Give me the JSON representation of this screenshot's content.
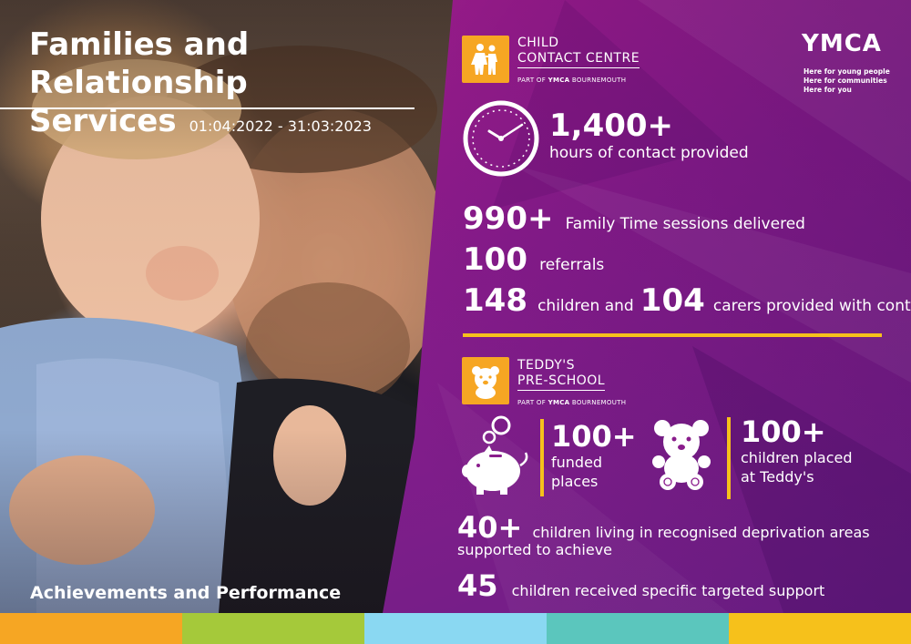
{
  "header": {
    "title_line1": "Families and Relationship",
    "title_line2": "Services",
    "date_range": "01:04:2022 - 31:03:2023"
  },
  "footer_label": "Achievements and Performance",
  "child_contact_logo": {
    "line1": "CHILD",
    "line2": "CONTACT CENTRE",
    "part_of_prefix": "PART OF",
    "part_of_brand": "YMCA",
    "part_of_place": "BOURNEMOUTH"
  },
  "teddys_logo": {
    "line1": "TEDDY'S",
    "line2": "PRE-SCHOOL",
    "part_of_prefix": "PART OF",
    "part_of_brand": "YMCA",
    "part_of_place": "BOURNEMOUTH"
  },
  "ymca": {
    "brand": "YMCA",
    "tag1": "Here for young people",
    "tag2": "Here for communities",
    "tag3": "Here for you"
  },
  "stats": {
    "hours_value": "1,400+",
    "hours_label": "hours of contact provided",
    "sessions_value": "990+",
    "sessions_label": "Family Time sessions delivered",
    "referrals_value": "100",
    "referrals_label": "referrals",
    "children_value": "148",
    "children_label": "children and",
    "carers_value": "104",
    "carers_label": "carers provided with contact",
    "funded_value": "100+",
    "funded_label1": "funded",
    "funded_label2": "places",
    "placed_value": "100+",
    "placed_label1": "children placed",
    "placed_label2": "at Teddy's",
    "deprivation_value": "40+",
    "deprivation_label1": "children living in recognised deprivation areas",
    "deprivation_label2": "supported to achieve",
    "targeted_value": "45",
    "targeted_label": "children received specific targeted support"
  },
  "colors": {
    "accent_gold": "#f6c11b",
    "logo_orange": "#f6a623",
    "stripe": [
      "#f6a623",
      "#a5c93a",
      "#8ad8f2",
      "#5bc6bd",
      "#f6c11b"
    ]
  },
  "icons": [
    "clock-icon",
    "children-walking-icon",
    "teddy-bear-icon",
    "piggy-bank-icon",
    "teddy-bear-large-icon"
  ]
}
